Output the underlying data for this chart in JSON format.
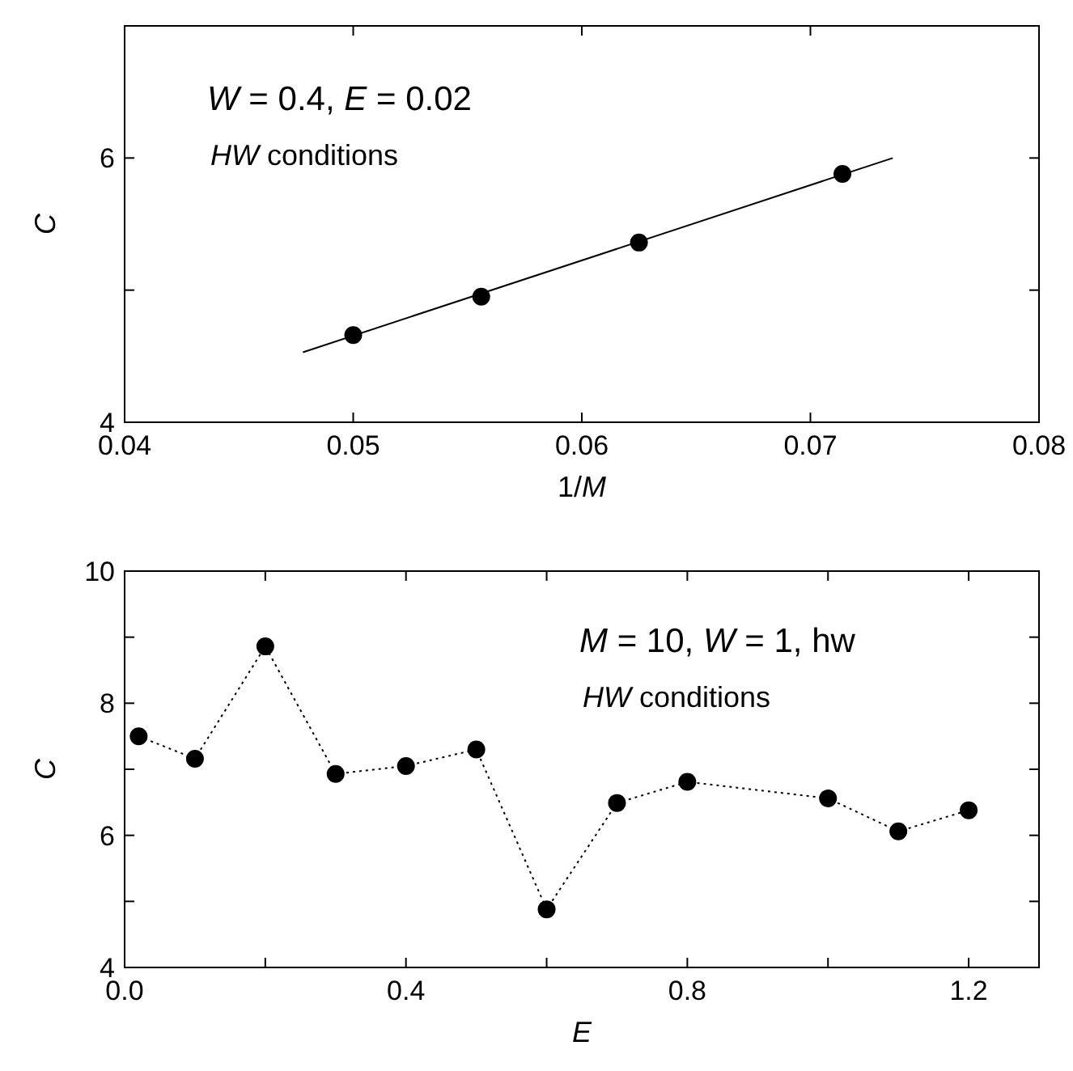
{
  "chart_data": [
    {
      "type": "scatter",
      "xlabel": "1/M",
      "ylabel": "C",
      "annotations": [
        "W = 0.4, E = 0.02",
        "HW conditions"
      ],
      "xlim": [
        0.04,
        0.08
      ],
      "ylim": [
        4,
        7
      ],
      "xticks": [
        0.04,
        0.05,
        0.06,
        0.07,
        0.08
      ],
      "yticks": [
        4,
        {
          "value": 5,
          "label": null
        },
        6
      ],
      "grid": false,
      "series": [
        {
          "type": "line",
          "color": "#000000",
          "x": [
            0.0478,
            0.0736
          ],
          "values": [
            4.53,
            6.0
          ],
          "marker": "none",
          "line_style": "solid"
        },
        {
          "color": "#000000",
          "x": [
            0.05,
            0.0556,
            0.0625,
            0.0714
          ],
          "values": [
            4.66,
            4.95,
            5.36,
            5.88
          ],
          "marker": "circle"
        }
      ]
    },
    {
      "type": "line",
      "xlabel": "E",
      "ylabel": "C",
      "annotations": [
        "M = 10, W = 1, hw",
        "HW conditions"
      ],
      "xlim": [
        0,
        1.3
      ],
      "ylim": [
        4,
        10
      ],
      "xticks": [
        {
          "value": 0,
          "label": "0.0"
        },
        {
          "value": 0.2,
          "label": null
        },
        {
          "value": 0.4,
          "label": "0.4"
        },
        {
          "value": 0.6,
          "label": null
        },
        {
          "value": 0.8,
          "label": "0.8"
        },
        {
          "value": 1.0,
          "label": null
        },
        {
          "value": 1.2,
          "label": "1.2"
        }
      ],
      "yticks": [
        4,
        {
          "value": 5,
          "label": null
        },
        6,
        {
          "value": 7,
          "label": null
        },
        8,
        {
          "value": 9,
          "label": null
        },
        10
      ],
      "grid": false,
      "series": [
        {
          "color": "#000000",
          "x": [
            0.02,
            0.1,
            0.2,
            0.3,
            0.4,
            0.5,
            0.6,
            0.7,
            0.8,
            1.0,
            1.1,
            1.2
          ],
          "values": [
            7.5,
            7.16,
            8.86,
            6.93,
            7.05,
            7.3,
            4.88,
            6.49,
            6.81,
            6.56,
            6.06,
            6.38
          ],
          "marker": "circle",
          "line_style": "dotted"
        }
      ]
    }
  ]
}
